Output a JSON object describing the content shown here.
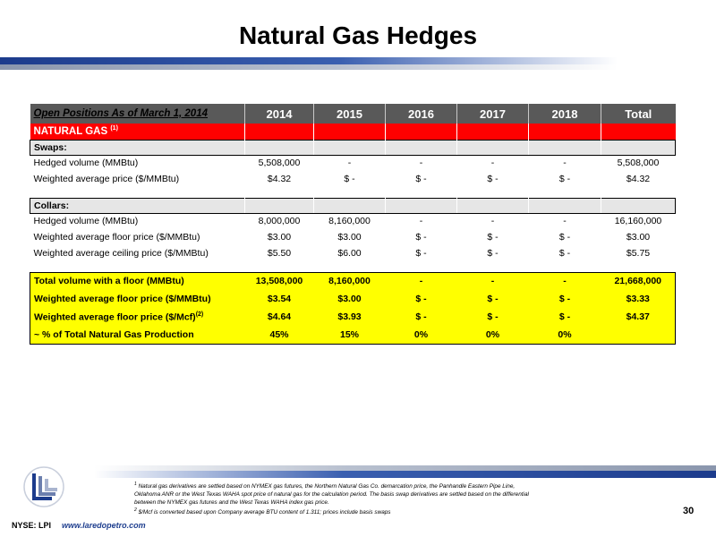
{
  "title": "Natural Gas Hedges",
  "colors": {
    "header_gray": "#595959",
    "red": "#ff0000",
    "yellow": "#ffff00",
    "section_gray": "#e6e6e6",
    "brand_blue": "#1c3b8c"
  },
  "table": {
    "header": [
      "Open Positions As of March 1, 2014",
      "2014",
      "2015",
      "2016",
      "2017",
      "2018",
      "Total"
    ],
    "natural_gas_label": "NATURAL GAS",
    "natural_gas_footnote": "(1)",
    "swaps": {
      "label": "Swaps:",
      "rows": [
        [
          "Hedged volume (MMBtu)",
          "5,508,000",
          "-",
          "-",
          "-",
          "-",
          "5,508,000"
        ],
        [
          "Weighted average price ($/MMBtu)",
          "$4.32",
          "$ -",
          "$ -",
          "$ -",
          "$ -",
          "$4.32"
        ]
      ]
    },
    "collars": {
      "label": "Collars:",
      "rows": [
        [
          "Hedged volume (MMBtu)",
          "8,000,000",
          "8,160,000",
          "-",
          "-",
          "-",
          "16,160,000"
        ],
        [
          "Weighted average floor price ($/MMBtu)",
          "$3.00",
          "$3.00",
          "$ -",
          "$ -",
          "$ -",
          "$3.00"
        ],
        [
          "Weighted average ceiling price ($/MMBtu)",
          "$5.50",
          "$6.00",
          "$ -",
          "$ -",
          "$ -",
          "$5.75"
        ]
      ]
    },
    "totals": {
      "rows": [
        [
          "Total volume with a floor (MMBtu)",
          "13,508,000",
          "8,160,000",
          "-",
          "-",
          "-",
          "21,668,000"
        ],
        [
          "Weighted average floor price ($/MMBtu)",
          "$3.54",
          "$3.00",
          "$ -",
          "$ -",
          "$ -",
          "$3.33"
        ],
        [
          "Weighted average floor price ($/Mcf)",
          "$4.64",
          "$3.93",
          "$ -",
          "$ -",
          "$ -",
          "$4.37"
        ],
        [
          "~ % of Total Natural Gas Production",
          "45%",
          "15%",
          "0%",
          "0%",
          "0%",
          ""
        ]
      ],
      "mcf_footnote": "(2)"
    }
  },
  "footnotes": {
    "n1_mark": "1",
    "n1_line1": "Natural gas derivatives are settled based on NYMEX gas futures, the Northern Natural Gas Co. demarcation price, the Panhandle Eastern Pipe Line,",
    "n1_line2": "Oklahoma ANR or the West Texas WAHA spot price of natural gas for the calculation period. The basis swap derivatives are settled based on the differential",
    "n1_line3": "between the NYMEX gas futures and the West Texas WAHA index gas price.",
    "n2_mark": "2",
    "n2_line1": "$/Mcf is converted based upon Company average BTU content of 1.311; prices include basis swaps"
  },
  "page_number": "30",
  "ticker": "NYSE: LPI",
  "website": "www.laredopetro.com",
  "logo_icon": "laredo-logo-icon"
}
